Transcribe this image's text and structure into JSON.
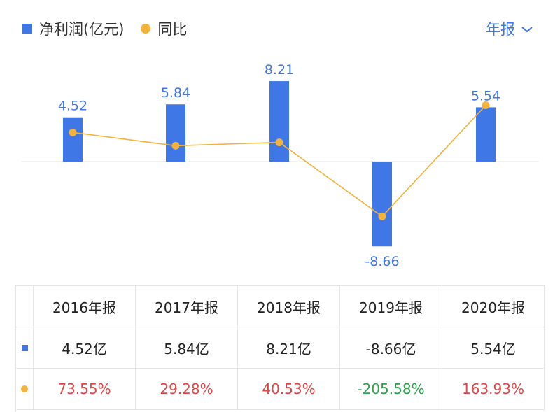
{
  "legend": {
    "bar_label": "净利润(亿元)",
    "line_label": "同比"
  },
  "period": {
    "label": "年报",
    "chevron": "chevron-down-icon"
  },
  "colors": {
    "bar": "#3f77e6",
    "line": "#f3b23a",
    "label": "#3f77e6",
    "positive": "#e04646",
    "negative": "#2aa34a"
  },
  "table": {
    "headers": [
      "2016年报",
      "2017年报",
      "2018年报",
      "2019年报",
      "2020年报"
    ],
    "net_profit": [
      "4.52亿",
      "5.84亿",
      "8.21亿",
      "-8.66亿",
      "5.54亿"
    ],
    "yoy": [
      "73.55%",
      "29.28%",
      "40.53%",
      "-205.58%",
      "163.93%"
    ]
  },
  "chart_data": {
    "type": "bar",
    "categories": [
      "2016年报",
      "2017年报",
      "2018年报",
      "2019年报",
      "2020年报"
    ],
    "series": [
      {
        "name": "净利润(亿元)",
        "type": "bar",
        "values": [
          4.52,
          5.84,
          8.21,
          -8.66,
          5.54
        ],
        "labels": [
          "4.52",
          "5.84",
          "8.21",
          "-8.66",
          "5.54"
        ]
      },
      {
        "name": "同比",
        "type": "line",
        "values": [
          73.55,
          29.28,
          40.53,
          -205.58,
          163.93
        ]
      }
    ],
    "grid": false
  }
}
